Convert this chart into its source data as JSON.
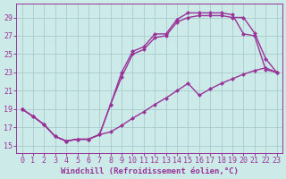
{
  "background_color": "#cceae7",
  "grid_color": "#aacccc",
  "line_color": "#993399",
  "marker": "D",
  "marker_size": 2.5,
  "line_width": 1.0,
  "xlabel": "Windchill (Refroidissement éolien,°C)",
  "xlabel_fontsize": 6.5,
  "xticks": [
    0,
    1,
    2,
    3,
    4,
    5,
    6,
    7,
    8,
    9,
    10,
    11,
    12,
    13,
    14,
    15,
    16,
    17,
    18,
    19,
    20,
    21,
    22,
    23
  ],
  "yticks": [
    15,
    17,
    19,
    21,
    23,
    25,
    27,
    29
  ],
  "xlim": [
    -0.5,
    23.5
  ],
  "ylim": [
    14.2,
    30.5
  ],
  "tick_fontsize": 6,
  "curve1_x": [
    0,
    1,
    2,
    3,
    4,
    5,
    6,
    7,
    8,
    9,
    10,
    11,
    12,
    13,
    14,
    15,
    16,
    17,
    18,
    19,
    20,
    21,
    22,
    23
  ],
  "curve1_y": [
    19.0,
    18.2,
    17.3,
    16.0,
    15.5,
    15.7,
    15.7,
    16.2,
    19.5,
    23.0,
    25.3,
    25.8,
    27.2,
    27.2,
    28.8,
    29.5,
    29.5,
    29.5,
    29.5,
    29.3,
    27.2,
    27.0,
    23.3,
    23.0
  ],
  "curve2_x": [
    0,
    1,
    2,
    3,
    4,
    5,
    6,
    7,
    8,
    9,
    10,
    11,
    12,
    13,
    14,
    15,
    16,
    17,
    18,
    19,
    20,
    21,
    22,
    23
  ],
  "curve2_y": [
    19.0,
    18.2,
    17.3,
    16.0,
    15.5,
    15.7,
    15.7,
    16.2,
    19.5,
    22.5,
    25.0,
    25.5,
    26.8,
    27.0,
    28.5,
    29.0,
    29.2,
    29.2,
    29.2,
    29.0,
    29.0,
    27.3,
    24.5,
    23.0
  ],
  "curve3_x": [
    0,
    1,
    2,
    3,
    4,
    5,
    6,
    7,
    8,
    9,
    10,
    11,
    12,
    13,
    14,
    15,
    16,
    17,
    18,
    19,
    20,
    21,
    22,
    23
  ],
  "curve3_y": [
    19.0,
    18.2,
    17.3,
    16.0,
    15.5,
    15.7,
    15.7,
    16.2,
    16.5,
    17.2,
    18.0,
    18.7,
    19.5,
    20.2,
    21.0,
    21.8,
    20.5,
    21.2,
    21.8,
    22.3,
    22.8,
    23.2,
    23.5,
    23.0
  ]
}
